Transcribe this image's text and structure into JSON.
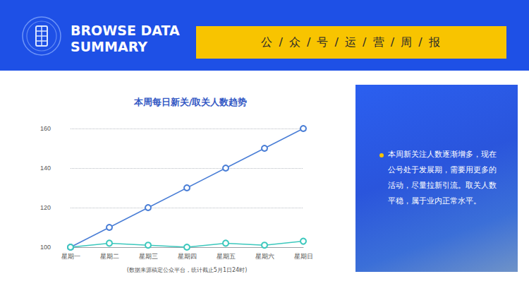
{
  "header": {
    "title": "BROWSE DATA SUMMARY",
    "banner": "公 / 众 / 号 / 运 / 营 / 周 / 报"
  },
  "chart_data": {
    "type": "line",
    "title": "本周每日新关/取关人数趋势",
    "categories": [
      "星期一",
      "星期二",
      "星期三",
      "星期四",
      "星期五",
      "星期六",
      "星期日"
    ],
    "series": [
      {
        "color": "#4a7ed6",
        "values": [
          100,
          110,
          120,
          130,
          140,
          150,
          160
        ]
      },
      {
        "color": "#3cc8bd",
        "values": [
          100,
          102,
          101,
          100,
          102,
          101,
          103
        ]
      }
    ],
    "ylim": [
      100,
      160
    ],
    "yticks": [
      100,
      120,
      140,
      160
    ],
    "grid": true,
    "marker": "emptyCircle"
  },
  "footnote": "(数据来源稿定公众平台，统计截止5月1日24时)",
  "panel": {
    "text": "本周新关注人数逐渐增多，现在公号处于发展期，需要用更多的活动，尽量拉新引流。取关人数平稳，属于业内正常水平。"
  }
}
